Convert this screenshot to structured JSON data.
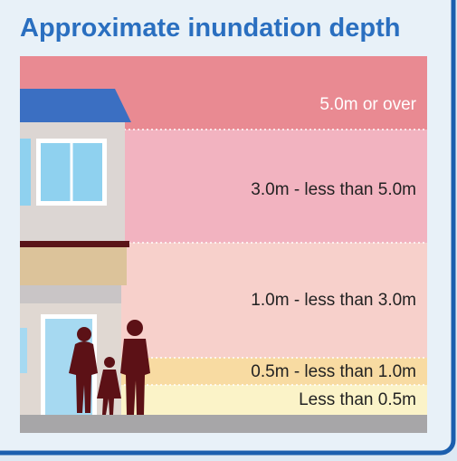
{
  "title": "Approximate inundation depth",
  "bands": [
    {
      "label": "5.0m or over"
    },
    {
      "label": "3.0m - less than 5.0m"
    },
    {
      "label": "1.0m - less than 3.0m"
    },
    {
      "label": "0.5m - less than 1.0m"
    },
    {
      "label": "Less than 0.5m"
    }
  ]
}
